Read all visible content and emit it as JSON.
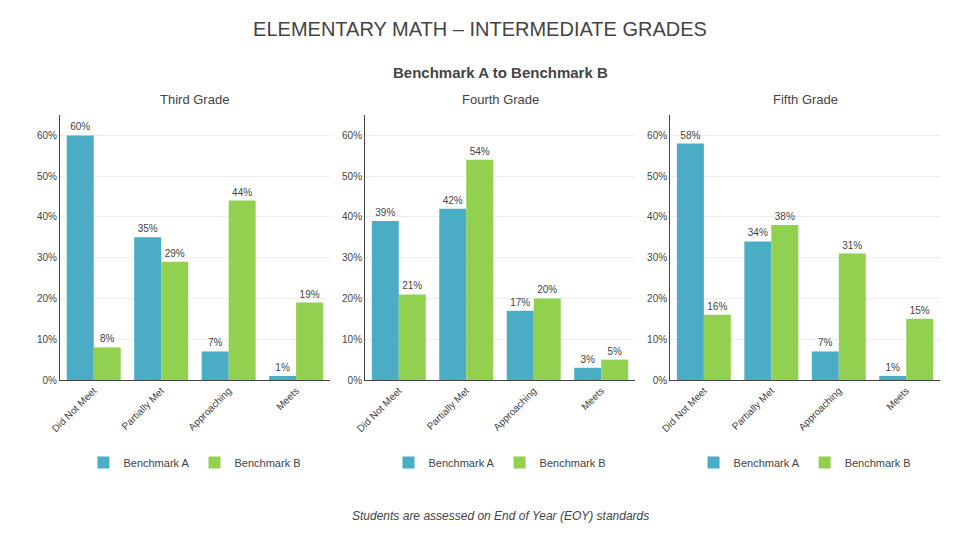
{
  "title": "ELEMENTARY MATH – INTERMEDIATE GRADES",
  "subtitle": "Benchmark A to Benchmark B",
  "annotations": [
    "Students are assessed on End of Year (EOY) standards"
  ],
  "chart_data": [
    {
      "type": "bar",
      "title": "Third Grade",
      "categories": [
        "Did Not Meet",
        "Partially Met",
        "Approaching",
        "Meets"
      ],
      "series": [
        {
          "name": "Benchmark A",
          "color": "#4BACC6",
          "values": [
            60,
            35,
            7,
            1
          ],
          "value_labels": [
            "60%",
            "35%",
            "7%",
            "1%"
          ]
        },
        {
          "name": "Benchmark B",
          "color": "#92D050",
          "values": [
            8,
            29,
            44,
            19
          ],
          "value_labels": [
            "8%",
            "29%",
            "44%",
            "19%"
          ]
        }
      ],
      "ylim": [
        0,
        65
      ],
      "yticks": [
        {
          "value": 0,
          "label": "0%"
        },
        {
          "value": 10,
          "label": "10%"
        },
        {
          "value": 20,
          "label": "20%"
        },
        {
          "value": 30,
          "label": "30%"
        },
        {
          "value": 40,
          "label": "40%"
        },
        {
          "value": 50,
          "label": "50%"
        },
        {
          "value": 60,
          "label": "60%"
        }
      ],
      "grid": true,
      "data_labels": true,
      "legend": "bottom"
    },
    {
      "type": "bar",
      "title": "Fourth Grade",
      "categories": [
        "Did Not Meet",
        "Partially Met",
        "Approaching",
        "Meets"
      ],
      "series": [
        {
          "name": "Benchmark A",
          "color": "#4BACC6",
          "values": [
            39,
            42,
            17,
            3
          ],
          "value_labels": [
            "39%",
            "42%",
            "17%",
            "3%"
          ]
        },
        {
          "name": "Benchmark B",
          "color": "#92D050",
          "values": [
            21,
            54,
            20,
            5
          ],
          "value_labels": [
            "21%",
            "54%",
            "20%",
            "5%"
          ]
        }
      ],
      "ylim": [
        0,
        65
      ],
      "yticks": [
        {
          "value": 0,
          "label": "0%"
        },
        {
          "value": 10,
          "label": "10%"
        },
        {
          "value": 20,
          "label": "20%"
        },
        {
          "value": 30,
          "label": "30%"
        },
        {
          "value": 40,
          "label": "40%"
        },
        {
          "value": 50,
          "label": "50%"
        },
        {
          "value": 60,
          "label": "60%"
        }
      ],
      "grid": true,
      "data_labels": true,
      "legend": "bottom"
    },
    {
      "type": "bar",
      "title": "Fifth Grade",
      "categories": [
        "Did Not Meet",
        "Partially Met",
        "Approaching",
        "Meets"
      ],
      "series": [
        {
          "name": "Benchmark A",
          "color": "#4BACC6",
          "values": [
            58,
            34,
            7,
            1
          ],
          "value_labels": [
            "58%",
            "34%",
            "7%",
            "1%"
          ]
        },
        {
          "name": "Benchmark B",
          "color": "#92D050",
          "values": [
            16,
            38,
            31,
            15
          ],
          "value_labels": [
            "16%",
            "38%",
            "31%",
            "15%"
          ]
        }
      ],
      "ylim": [
        0,
        65
      ],
      "yticks": [
        {
          "value": 0,
          "label": "0%"
        },
        {
          "value": 10,
          "label": "10%"
        },
        {
          "value": 20,
          "label": "20%"
        },
        {
          "value": 30,
          "label": "30%"
        },
        {
          "value": 40,
          "label": "40%"
        },
        {
          "value": 50,
          "label": "50%"
        },
        {
          "value": 60,
          "label": "60%"
        }
      ],
      "grid": true,
      "data_labels": true,
      "legend": "bottom"
    }
  ]
}
